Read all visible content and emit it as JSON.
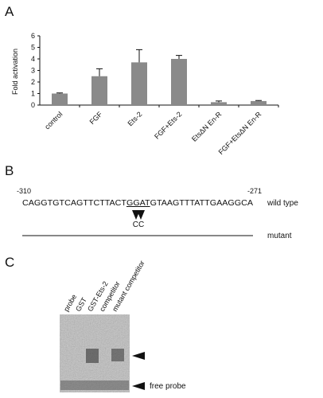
{
  "panels": {
    "a": "A",
    "b": "B",
    "c": "C"
  },
  "chart_data": {
    "type": "bar",
    "ylabel": "Fold activation",
    "categories": [
      "control",
      "FGF",
      "Ets-2",
      "FGF+Ets-2",
      "EtsΔN En-R",
      "FGF+EtsΔN En-R"
    ],
    "values": [
      1.0,
      2.5,
      3.7,
      4.0,
      0.25,
      0.35
    ],
    "errors": [
      0.05,
      0.65,
      1.1,
      0.3,
      0.1,
      0.05
    ],
    "color": "#8a8a8a",
    "ylim": [
      0,
      6
    ],
    "yticks": [
      0,
      1,
      2,
      3,
      4,
      5,
      6
    ]
  },
  "sequence": {
    "start": "-310",
    "end": "-271",
    "parts": [
      "CAGGTGTCAGTTCTTACT",
      "GGAT",
      "GTAAGTTTATTGAAGGCA"
    ],
    "wild_type": "wild type",
    "mutation": "CC",
    "mutant": "mutant"
  },
  "gel": {
    "lanes": [
      "probe",
      "GST",
      "GST-Ets-2",
      "competitor",
      "mutant competitor"
    ],
    "free_probe": "free probe"
  }
}
